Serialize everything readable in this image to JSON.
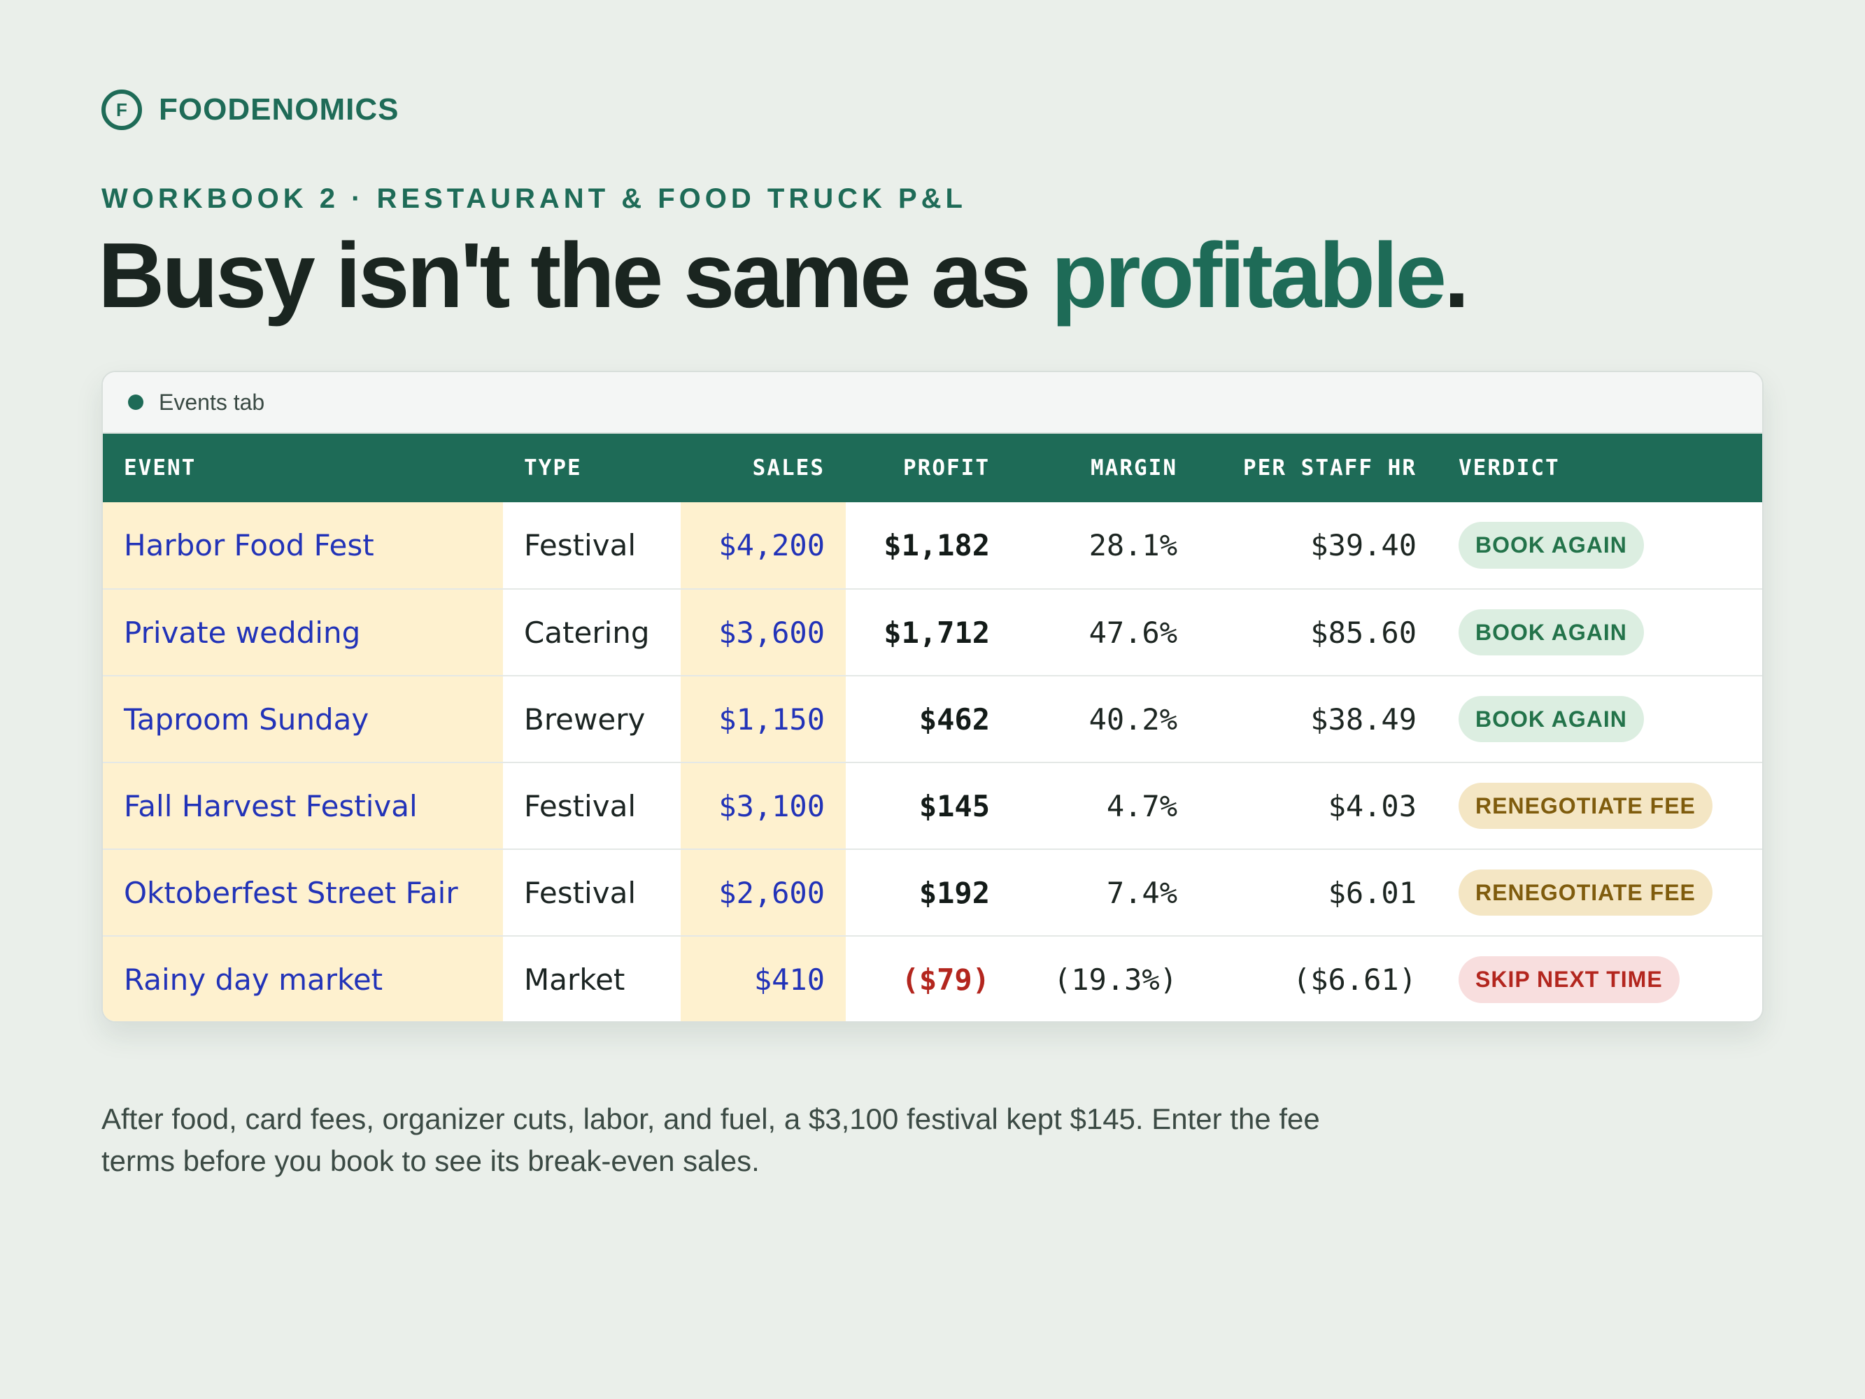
{
  "brand": {
    "logo_letter": "F",
    "name": "FOODENOMICS"
  },
  "eyebrow": "WORKBOOK 2 · RESTAURANT & FOOD TRUCK P&L",
  "headline": {
    "lead": "Busy isn't the same as ",
    "accent": "profitable",
    "end": "."
  },
  "tab": {
    "label": "Events tab"
  },
  "table": {
    "headers": {
      "event": "EVENT",
      "type": "TYPE",
      "sales": "SALES",
      "profit": "PROFIT",
      "margin": "MARGIN",
      "per_staff_hr": "PER STAFF HR",
      "verdict": "VERDICT"
    },
    "rows": [
      {
        "event": "Harbor Food Fest",
        "type": "Festival",
        "sales": "$4,200",
        "profit": "$1,182",
        "margin": "28.1%",
        "per_staff_hr": "$39.40",
        "verdict": "BOOK AGAIN",
        "verdict_status": "good"
      },
      {
        "event": "Private wedding",
        "type": "Catering",
        "sales": "$3,600",
        "profit": "$1,712",
        "margin": "47.6%",
        "per_staff_hr": "$85.60",
        "verdict": "BOOK AGAIN",
        "verdict_status": "good"
      },
      {
        "event": "Taproom Sunday",
        "type": "Brewery",
        "sales": "$1,150",
        "profit": "$462",
        "margin": "40.2%",
        "per_staff_hr": "$38.49",
        "verdict": "BOOK AGAIN",
        "verdict_status": "good"
      },
      {
        "event": "Fall Harvest Festival",
        "type": "Festival",
        "sales": "$3,100",
        "profit": "$145",
        "margin": "4.7%",
        "per_staff_hr": "$4.03",
        "verdict": "RENEGOTIATE FEE",
        "verdict_status": "warn"
      },
      {
        "event": "Oktoberfest Street Fair",
        "type": "Festival",
        "sales": "$2,600",
        "profit": "$192",
        "margin": "7.4%",
        "per_staff_hr": "$6.01",
        "verdict": "RENEGOTIATE FEE",
        "verdict_status": "warn"
      },
      {
        "event": "Rainy day market",
        "type": "Market",
        "sales": "$410",
        "profit": "($79)",
        "margin": "(19.3%)",
        "per_staff_hr": "($6.61)",
        "verdict": "SKIP NEXT TIME",
        "verdict_status": "bad"
      }
    ]
  },
  "note": "After food, card fees, organizer cuts, labor, and fuel, a $3,100 festival kept $145. Enter the fee terms before you book to see its break-even sales.",
  "colors": {
    "accent": "#1e6b57",
    "background": "#eaefea",
    "input_cell": "#fef1cf",
    "link_blue": "#2233b8",
    "negative": "#b3261e"
  }
}
